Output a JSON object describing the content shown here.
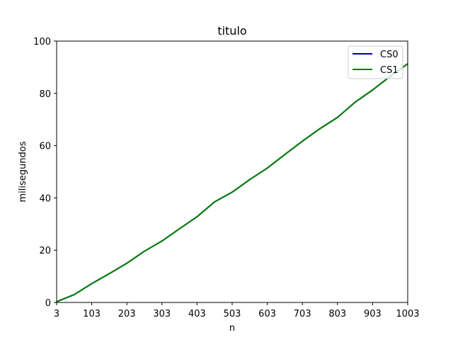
{
  "chart_data": {
    "type": "line",
    "title": "titulo",
    "xlabel": "n",
    "ylabel": "milisegundos",
    "xlim": [
      3,
      1003
    ],
    "ylim": [
      0,
      100
    ],
    "xticks": [
      3,
      103,
      203,
      303,
      403,
      503,
      603,
      703,
      803,
      903,
      1003
    ],
    "yticks": [
      0,
      20,
      40,
      60,
      80,
      100
    ],
    "grid": false,
    "legend_position": "top-right",
    "x": [
      3,
      53,
      103,
      153,
      203,
      253,
      303,
      353,
      403,
      453,
      503,
      553,
      603,
      653,
      703,
      753,
      803,
      853,
      903,
      953,
      1003
    ],
    "series": [
      {
        "name": "CS0",
        "color": "#0000bf",
        "values": [
          0.3,
          3.0,
          7.2,
          11.0,
          15.0,
          19.6,
          23.5,
          28.2,
          32.8,
          38.5,
          42.2,
          47.0,
          51.4,
          56.6,
          61.7,
          66.5,
          70.8,
          76.6,
          81.3,
          86.5,
          91.3
        ]
      },
      {
        "name": "CS1",
        "color": "#007f00",
        "values": [
          0.3,
          3.0,
          7.2,
          11.0,
          15.0,
          19.6,
          23.5,
          28.2,
          32.8,
          38.5,
          42.2,
          47.0,
          51.4,
          56.6,
          61.7,
          66.5,
          70.8,
          76.6,
          81.3,
          86.5,
          91.3
        ]
      }
    ]
  }
}
